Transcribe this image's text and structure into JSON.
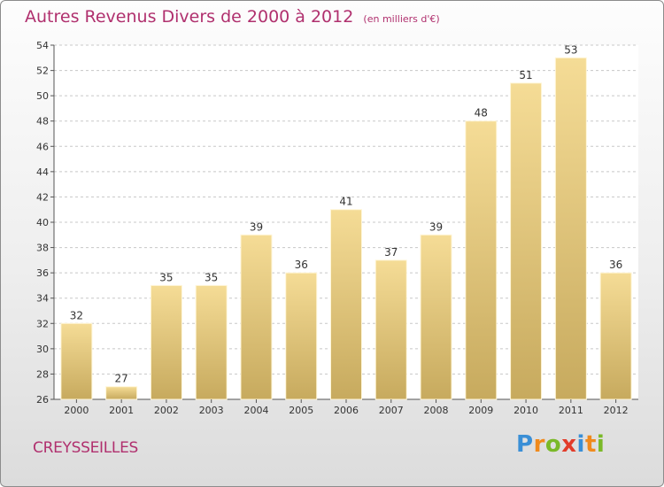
{
  "title": "Autres Revenus Divers de 2000 à 2012",
  "unit_note": "(en milliers d'€)",
  "commune": "CREYSSEILLES",
  "logo": {
    "text": "Proxiti",
    "letters": [
      "P",
      "r",
      "o",
      "x",
      "i",
      "t",
      "i"
    ],
    "colors": [
      "#3a8fd6",
      "#f08a1c",
      "#7ab928",
      "#e23c2a",
      "#3a8fd6",
      "#f08a1c",
      "#7ab928"
    ]
  },
  "colors": {
    "accent": "#b0306e",
    "bar_top": "#f5dc96",
    "bar_bottom": "#c7aa5e"
  },
  "chart_data": {
    "type": "bar",
    "categories": [
      "2000",
      "2001",
      "2002",
      "2003",
      "2004",
      "2005",
      "2006",
      "2007",
      "2008",
      "2009",
      "2010",
      "2011",
      "2012"
    ],
    "values": [
      32,
      27,
      35,
      35,
      39,
      36,
      41,
      37,
      39,
      48,
      51,
      53,
      36
    ],
    "xlabel": "",
    "ylabel": "",
    "ylim": [
      26,
      54
    ],
    "yticks": [
      26,
      28,
      30,
      32,
      34,
      36,
      38,
      40,
      42,
      44,
      46,
      48,
      50,
      52,
      54
    ],
    "grid": "dashed horizontal",
    "data_labels": true
  }
}
